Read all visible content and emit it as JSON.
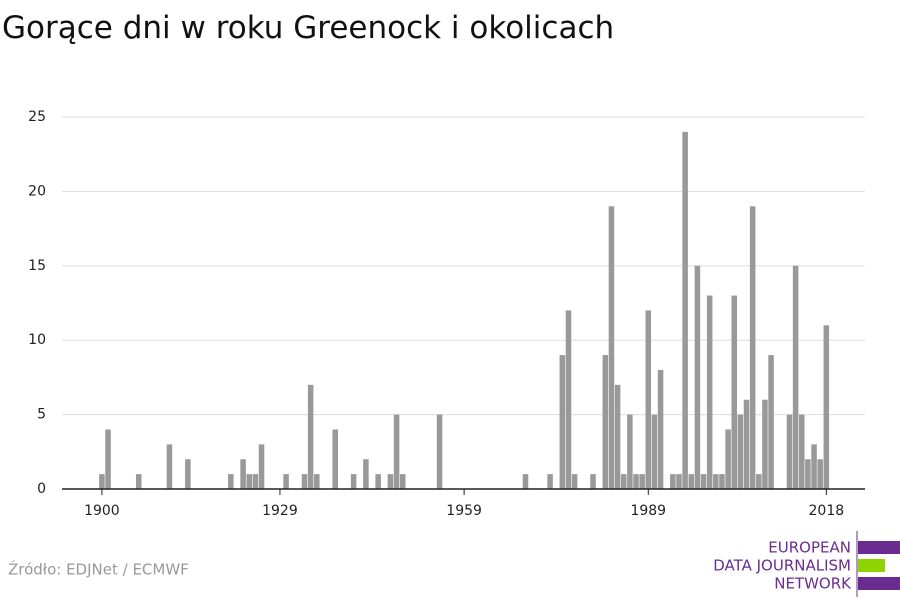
{
  "chart_data": {
    "type": "bar",
    "title": "Gorące dni w roku Greenock i okolicach",
    "source": "Źródło: EDJNet / ECMWF",
    "x": [
      1900,
      1901,
      1906,
      1911,
      1914,
      1921,
      1923,
      1924,
      1925,
      1926,
      1930,
      1933,
      1934,
      1935,
      1938,
      1941,
      1943,
      1945,
      1947,
      1948,
      1949,
      1955,
      1969,
      1973,
      1975,
      1976,
      1977,
      1980,
      1982,
      1983,
      1984,
      1985,
      1986,
      1987,
      1988,
      1989,
      1990,
      1991,
      1993,
      1994,
      1995,
      1996,
      1997,
      1998,
      1999,
      2000,
      2001,
      2002,
      2003,
      2004,
      2005,
      2006,
      2007,
      2008,
      2009,
      2012,
      2013,
      2014,
      2015,
      2016,
      2017,
      2018
    ],
    "values": [
      1,
      4,
      1,
      3,
      2,
      1,
      2,
      1,
      1,
      3,
      1,
      1,
      7,
      1,
      4,
      1,
      2,
      1,
      1,
      5,
      1,
      5,
      1,
      1,
      9,
      12,
      1,
      1,
      9,
      19,
      7,
      1,
      5,
      1,
      1,
      12,
      5,
      8,
      1,
      1,
      24,
      1,
      15,
      1,
      13,
      1,
      1,
      4,
      13,
      5,
      6,
      19,
      1,
      6,
      9,
      5,
      15,
      5,
      2,
      3,
      2,
      11
    ],
    "color": "#999999",
    "xlim": [
      1893.5,
      2024.3
    ],
    "ylim": [
      0,
      25
    ],
    "xticks": [
      1900,
      1929,
      1959,
      1989,
      2018
    ],
    "yticks": [
      0,
      5,
      10,
      15,
      20,
      25
    ],
    "grid": true
  },
  "logo": [
    "EUROPEAN",
    "DATA JOURNALISM",
    "NETWORK"
  ]
}
